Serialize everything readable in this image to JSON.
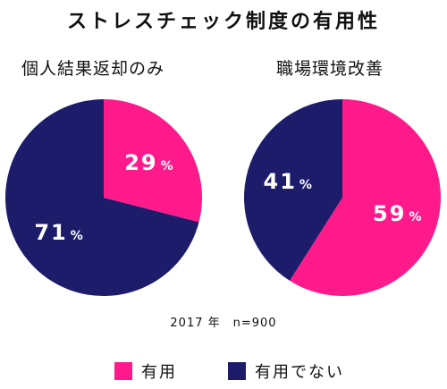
{
  "title": "ストレスチェック制度の有用性",
  "note": "2017 年　n=900",
  "colors": {
    "useful": "#ff1a8c",
    "not_useful": "#1c1c6b"
  },
  "legend": [
    {
      "label": "有用",
      "color": "#ff1a8c"
    },
    {
      "label": "有用でない",
      "color": "#1c1c6b"
    }
  ],
  "chart_data": [
    {
      "type": "pie",
      "title": "個人結果返却のみ",
      "slices": [
        {
          "name": "有用",
          "value": 29,
          "label": "29",
          "unit": "%",
          "color": "#ff1a8c"
        },
        {
          "name": "有用でない",
          "value": 71,
          "label": "71",
          "unit": "%",
          "color": "#1c1c6b"
        }
      ]
    },
    {
      "type": "pie",
      "title": "職場環境改善",
      "slices": [
        {
          "name": "有用",
          "value": 59,
          "label": "59",
          "unit": "%",
          "color": "#ff1a8c"
        },
        {
          "name": "有用でない",
          "value": 41,
          "label": "41",
          "unit": "%",
          "color": "#1c1c6b"
        }
      ]
    }
  ]
}
